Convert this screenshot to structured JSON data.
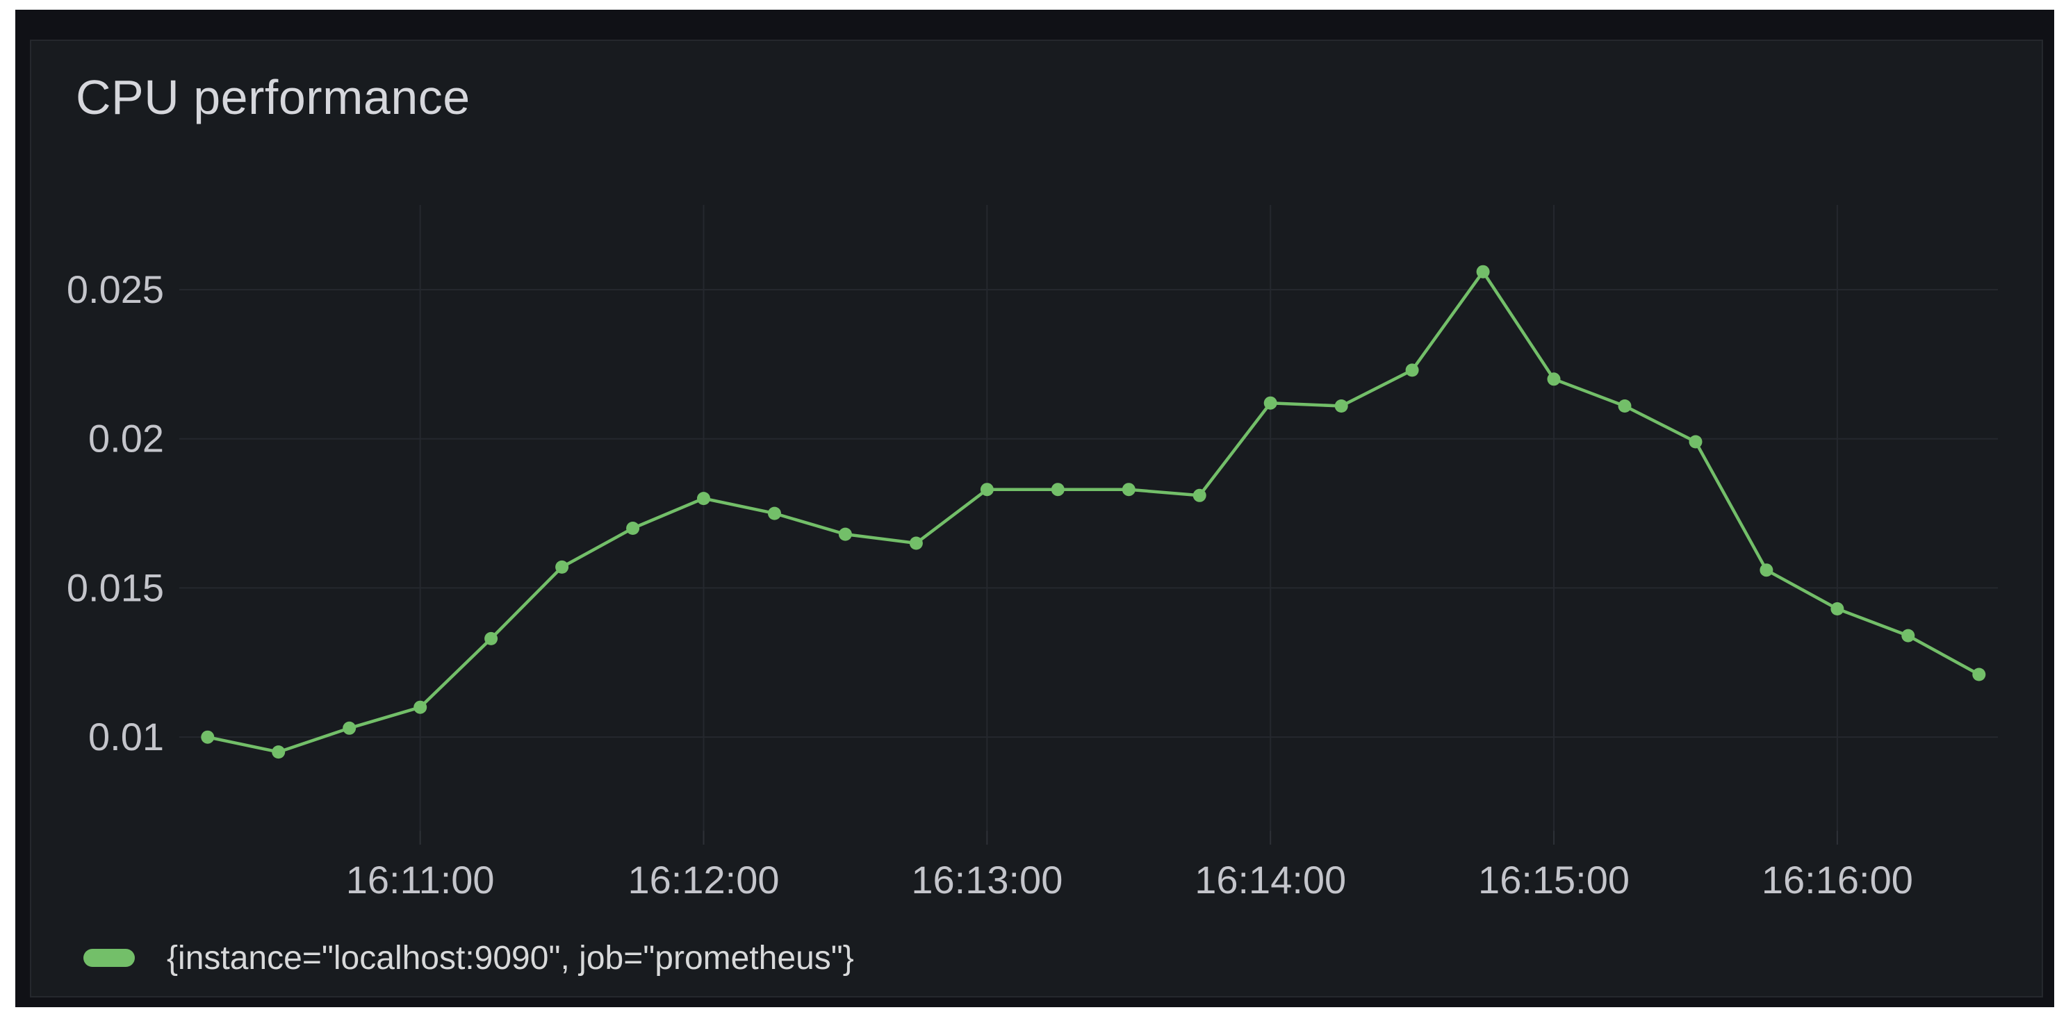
{
  "panel": {
    "title": "CPU performance"
  },
  "chart_data": {
    "type": "line",
    "title": "CPU performance",
    "xlabel": "",
    "ylabel": "",
    "grid": true,
    "legend_position": "bottom-left",
    "points_shown": true,
    "xlim": [
      "16:10:09",
      "16:16:34"
    ],
    "ylim": [
      0.00686,
      0.02784
    ],
    "x_ticks": [
      "16:11:00",
      "16:12:00",
      "16:13:00",
      "16:14:00",
      "16:15:00",
      "16:16:00"
    ],
    "y_ticks": [
      {
        "value": 0.01,
        "label": "0.01"
      },
      {
        "value": 0.015,
        "label": "0.015"
      },
      {
        "value": 0.02,
        "label": "0.02"
      },
      {
        "value": 0.025,
        "label": "0.025"
      }
    ],
    "series": [
      {
        "name": "{instance=\"localhost:9090\", job=\"prometheus\"}",
        "color": "#73bf69",
        "x": [
          "16:10:15",
          "16:10:30",
          "16:10:45",
          "16:11:00",
          "16:11:15",
          "16:11:30",
          "16:11:45",
          "16:12:00",
          "16:12:15",
          "16:12:30",
          "16:12:45",
          "16:13:00",
          "16:13:15",
          "16:13:30",
          "16:13:45",
          "16:14:00",
          "16:14:15",
          "16:14:30",
          "16:14:45",
          "16:15:00",
          "16:15:15",
          "16:15:30",
          "16:15:45",
          "16:16:00",
          "16:16:15",
          "16:16:30"
        ],
        "values": [
          0.01,
          0.0095,
          0.0103,
          0.011,
          0.0133,
          0.0157,
          0.017,
          0.018,
          0.0175,
          0.0168,
          0.0165,
          0.0183,
          0.0183,
          0.0183,
          0.0181,
          0.0212,
          0.0211,
          0.0223,
          0.0256,
          0.022,
          0.0211,
          0.0199,
          0.0156,
          0.0143,
          0.0134,
          0.0121
        ]
      }
    ]
  }
}
